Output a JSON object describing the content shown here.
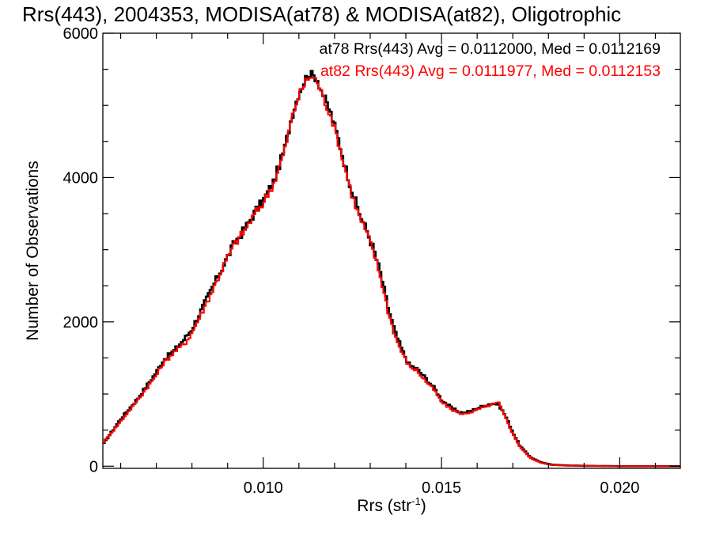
{
  "chart_data": {
    "type": "line",
    "title": "Rrs(443), 2004353, MODISA(at78) & MODISA(at82), Oligotrophic",
    "xlabel": "Rrs (str",
    "xlabel_sup": "-1",
    "xlabel_close": ")",
    "ylabel": "Number of Observations",
    "xlim": [
      0.0055,
      0.0217
    ],
    "ylim": [
      -30,
      6000
    ],
    "x_ticks": [
      {
        "value": 0.01,
        "label": "0.010"
      },
      {
        "value": 0.015,
        "label": "0.015"
      },
      {
        "value": 0.02,
        "label": "0.020"
      }
    ],
    "y_ticks": [
      {
        "value": 0,
        "label": "0"
      },
      {
        "value": 2000,
        "label": "2000"
      },
      {
        "value": 4000,
        "label": "4000"
      },
      {
        "value": 6000,
        "label": "6000"
      }
    ],
    "grid": false,
    "legend_placement": "top-right",
    "series": [
      {
        "name": "at78",
        "legend": "at78 Rrs(443) Avg = 0.0112000, Med = 0.0112169",
        "color": "#000000",
        "x": [
          0.0055,
          0.006,
          0.0065,
          0.007,
          0.0072,
          0.0075,
          0.0078,
          0.008,
          0.0083,
          0.0086,
          0.0089,
          0.0092,
          0.0095,
          0.0098,
          0.01,
          0.0103,
          0.0106,
          0.0108,
          0.011,
          0.0112,
          0.0113,
          0.0115,
          0.0117,
          0.0119,
          0.0121,
          0.0123,
          0.0125,
          0.0127,
          0.0129,
          0.0131,
          0.0133,
          0.0135,
          0.0137,
          0.0139,
          0.0141,
          0.0143,
          0.0145,
          0.0148,
          0.015,
          0.0153,
          0.0156,
          0.0159,
          0.0162,
          0.0164,
          0.0166,
          0.0168,
          0.017,
          0.0172,
          0.0175,
          0.0178,
          0.0181,
          0.0185,
          0.019,
          0.02,
          0.0217
        ],
        "y": [
          300,
          650,
          950,
          1300,
          1470,
          1600,
          1770,
          1900,
          2200,
          2500,
          2800,
          3100,
          3300,
          3550,
          3680,
          3950,
          4400,
          4850,
          5170,
          5380,
          5440,
          5380,
          5120,
          4880,
          4550,
          4150,
          3800,
          3500,
          3270,
          3000,
          2650,
          2200,
          1850,
          1600,
          1400,
          1350,
          1250,
          1080,
          920,
          800,
          730,
          780,
          840,
          870,
          860,
          690,
          470,
          280,
          120,
          50,
          20,
          10,
          5,
          0,
          0
        ]
      },
      {
        "name": "at82",
        "legend": "at82 Rrs(443) Avg = 0.0111977, Med = 0.0112153",
        "color": "#ff0000",
        "x": [
          0.0055,
          0.006,
          0.0065,
          0.007,
          0.0072,
          0.0075,
          0.0078,
          0.008,
          0.0083,
          0.0086,
          0.0089,
          0.0092,
          0.0095,
          0.0098,
          0.01,
          0.0103,
          0.0106,
          0.0108,
          0.011,
          0.0112,
          0.0113,
          0.0115,
          0.0117,
          0.0119,
          0.0121,
          0.0123,
          0.0125,
          0.0127,
          0.0129,
          0.0131,
          0.0133,
          0.0135,
          0.0137,
          0.0139,
          0.0141,
          0.0143,
          0.0145,
          0.0148,
          0.015,
          0.0153,
          0.0156,
          0.0159,
          0.0162,
          0.0164,
          0.0166,
          0.0168,
          0.017,
          0.0172,
          0.0175,
          0.0178,
          0.0181,
          0.0185,
          0.019,
          0.02,
          0.0217
        ],
        "y": [
          320,
          620,
          930,
          1260,
          1430,
          1580,
          1700,
          1850,
          2150,
          2460,
          2790,
          3080,
          3280,
          3520,
          3650,
          3930,
          4370,
          4820,
          5140,
          5330,
          5400,
          5350,
          5080,
          4850,
          4510,
          4120,
          3740,
          3450,
          3230,
          2960,
          2600,
          2150,
          1800,
          1560,
          1380,
          1330,
          1210,
          1050,
          890,
          780,
          720,
          760,
          820,
          850,
          880,
          670,
          450,
          270,
          110,
          45,
          18,
          8,
          4,
          0,
          0
        ]
      }
    ]
  }
}
